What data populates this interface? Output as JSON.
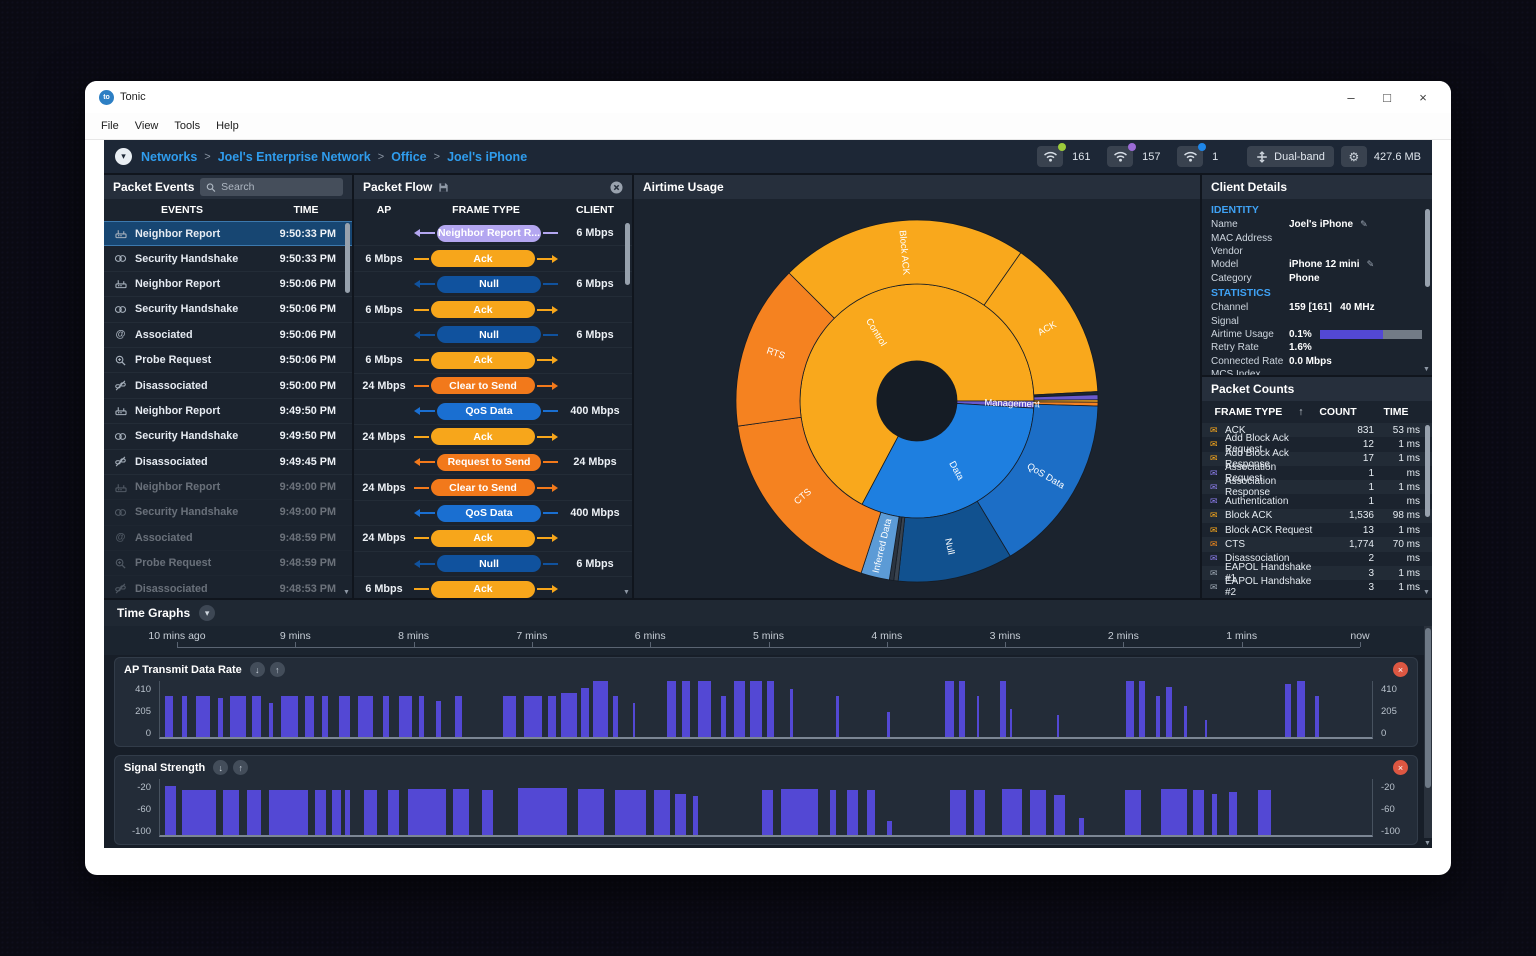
{
  "window": {
    "title": "Tonic",
    "logo_text": "to"
  },
  "icons": {
    "minimize": "–",
    "maximize": "□",
    "close": "×",
    "chevron_down": "▾",
    "arrow_down": "↓",
    "arrow_up": "↑",
    "sort_asc": "↑",
    "envelope": "✉",
    "gear": "⚙",
    "pencil": "✎",
    "scroll_down": "▼"
  },
  "menu": {
    "items": [
      "File",
      "View",
      "Tools",
      "Help"
    ]
  },
  "breadcrumb": {
    "separator": ">",
    "items": [
      "Networks",
      "Joel's Enterprise Network",
      "Office",
      "Joel's iPhone"
    ]
  },
  "statusbar": {
    "wifi": [
      {
        "count": "161",
        "dot": "#9ccb3b"
      },
      {
        "count": "157",
        "dot": "#9b6bd6"
      },
      {
        "count": "1",
        "dot": "#1e86e8"
      }
    ],
    "dual_band_label": "Dual-band",
    "data_size": "427.6 MB"
  },
  "theme": {
    "accent_purple": "#5348d4",
    "link_blue": "#2f9ced",
    "pills": {
      "mgmt": "#b3a6f0",
      "ack": "#f7a61b",
      "cts": "#f2791b",
      "qos": "#1a6fd1",
      "null": "#10529e"
    }
  },
  "packet_events": {
    "title": "Packet Events",
    "search_placeholder": "Search",
    "columns": [
      "EVENTS",
      "TIME"
    ],
    "rows": [
      {
        "icon": "neighbor-report",
        "event": "Neighbor Report",
        "time": "9:50:33 PM",
        "selected": true,
        "dim": false
      },
      {
        "icon": "security-handshake",
        "event": "Security Handshake",
        "time": "9:50:33 PM",
        "selected": false,
        "dim": false
      },
      {
        "icon": "neighbor-report",
        "event": "Neighbor Report",
        "time": "9:50:06 PM",
        "selected": false,
        "dim": false
      },
      {
        "icon": "security-handshake",
        "event": "Security Handshake",
        "time": "9:50:06 PM",
        "selected": false,
        "dim": false
      },
      {
        "icon": "associated",
        "event": "Associated",
        "time": "9:50:06 PM",
        "selected": false,
        "dim": false
      },
      {
        "icon": "probe-request",
        "event": "Probe Request",
        "time": "9:50:06 PM",
        "selected": false,
        "dim": false
      },
      {
        "icon": "disassociated",
        "event": "Disassociated",
        "time": "9:50:00 PM",
        "selected": false,
        "dim": false
      },
      {
        "icon": "neighbor-report",
        "event": "Neighbor Report",
        "time": "9:49:50 PM",
        "selected": false,
        "dim": false
      },
      {
        "icon": "security-handshake",
        "event": "Security Handshake",
        "time": "9:49:50 PM",
        "selected": false,
        "dim": false
      },
      {
        "icon": "disassociated",
        "event": "Disassociated",
        "time": "9:49:45 PM",
        "selected": false,
        "dim": false
      },
      {
        "icon": "neighbor-report",
        "event": "Neighbor Report",
        "time": "9:49:00 PM",
        "selected": false,
        "dim": true
      },
      {
        "icon": "security-handshake",
        "event": "Security Handshake",
        "time": "9:49:00 PM",
        "selected": false,
        "dim": true
      },
      {
        "icon": "associated",
        "event": "Associated",
        "time": "9:48:59 PM",
        "selected": false,
        "dim": true
      },
      {
        "icon": "probe-request",
        "event": "Probe Request",
        "time": "9:48:59 PM",
        "selected": false,
        "dim": true
      },
      {
        "icon": "disassociated",
        "event": "Disassociated",
        "time": "9:48:53 PM",
        "selected": false,
        "dim": true
      }
    ]
  },
  "packet_flow": {
    "title": "Packet Flow",
    "columns": [
      "AP",
      "FRAME TYPE",
      "CLIENT"
    ],
    "rows": [
      {
        "ap": "",
        "frame": "Neighbor Report R...",
        "client": "6 Mbps",
        "dir": "left",
        "kind": "mgmt"
      },
      {
        "ap": "6 Mbps",
        "frame": "Ack",
        "client": "",
        "dir": "right",
        "kind": "ack"
      },
      {
        "ap": "",
        "frame": "Null",
        "client": "6 Mbps",
        "dir": "left",
        "kind": "null"
      },
      {
        "ap": "6 Mbps",
        "frame": "Ack",
        "client": "",
        "dir": "right",
        "kind": "ack"
      },
      {
        "ap": "",
        "frame": "Null",
        "client": "6 Mbps",
        "dir": "left",
        "kind": "null"
      },
      {
        "ap": "6 Mbps",
        "frame": "Ack",
        "client": "",
        "dir": "right",
        "kind": "ack"
      },
      {
        "ap": "24 Mbps",
        "frame": "Clear to Send",
        "client": "",
        "dir": "right",
        "kind": "cts"
      },
      {
        "ap": "",
        "frame": "QoS Data",
        "client": "400 Mbps",
        "dir": "left",
        "kind": "qos"
      },
      {
        "ap": "24 Mbps",
        "frame": "Ack",
        "client": "",
        "dir": "right",
        "kind": "ack"
      },
      {
        "ap": "",
        "frame": "Request to Send",
        "client": "24 Mbps",
        "dir": "left",
        "kind": "cts"
      },
      {
        "ap": "24 Mbps",
        "frame": "Clear to Send",
        "client": "",
        "dir": "right",
        "kind": "cts"
      },
      {
        "ap": "",
        "frame": "QoS Data",
        "client": "400 Mbps",
        "dir": "left",
        "kind": "qos"
      },
      {
        "ap": "24 Mbps",
        "frame": "Ack",
        "client": "",
        "dir": "right",
        "kind": "ack"
      },
      {
        "ap": "",
        "frame": "Null",
        "client": "6 Mbps",
        "dir": "left",
        "kind": "null"
      },
      {
        "ap": "6 Mbps",
        "frame": "Ack",
        "client": "",
        "dir": "right",
        "kind": "ack"
      }
    ]
  },
  "airtime": {
    "title": "Airtime Usage"
  },
  "client_details": {
    "title": "Client Details",
    "identity_header": "IDENTITY",
    "statistics_header": "STATISTICS",
    "identity": [
      {
        "label": "Name",
        "value": "Joel's iPhone",
        "edit": true
      },
      {
        "label": "MAC Address",
        "value": ""
      },
      {
        "label": "Vendor",
        "value": ""
      },
      {
        "label": "Model",
        "value": "iPhone 12 mini",
        "edit": true
      },
      {
        "label": "Category",
        "value": "Phone"
      }
    ],
    "statistics": [
      {
        "label": "Channel",
        "value": "159 [161]   40 MHz"
      },
      {
        "label": "Signal",
        "value": ""
      },
      {
        "label": "Airtime Usage",
        "value": "0.1%",
        "bar": 0.62
      },
      {
        "label": "Retry Rate",
        "value": "1.6%"
      },
      {
        "label": "Connected Rate",
        "value": "0.0 Mbps"
      },
      {
        "label": "MCS Index",
        "value": ""
      }
    ]
  },
  "packet_counts": {
    "title": "Packet Counts",
    "columns": [
      "FRAME TYPE",
      "COUNT",
      "TIME"
    ],
    "rows": [
      {
        "frame": "ACK",
        "count": "831",
        "time": "53 ms",
        "color": "#f7a61b"
      },
      {
        "frame": "Add Block Ack Request",
        "count": "12",
        "time": "1 ms",
        "color": "#f7a61b"
      },
      {
        "frame": "Add Block Ack Response",
        "count": "17",
        "time": "1 ms",
        "color": "#f7a61b"
      },
      {
        "frame": "Association Request",
        "count": "1",
        "time": "ms",
        "color": "#8a7be8"
      },
      {
        "frame": "Association Response",
        "count": "1",
        "time": "1 ms",
        "color": "#8a7be8"
      },
      {
        "frame": "Authentication",
        "count": "1",
        "time": "ms",
        "color": "#8a7be8"
      },
      {
        "frame": "Block ACK",
        "count": "1,536",
        "time": "98 ms",
        "color": "#f7a61b"
      },
      {
        "frame": "Block ACK Request",
        "count": "13",
        "time": "1 ms",
        "color": "#f7a61b"
      },
      {
        "frame": "CTS",
        "count": "1,774",
        "time": "70 ms",
        "color": "#f2881b"
      },
      {
        "frame": "Disassociation",
        "count": "2",
        "time": "ms",
        "color": "#8a7be8"
      },
      {
        "frame": "EAPOL Handshake #1",
        "count": "3",
        "time": "1 ms",
        "color": "#9aa4b0"
      },
      {
        "frame": "EAPOL Handshake #2",
        "count": "3",
        "time": "1 ms",
        "color": "#9aa4b0"
      }
    ]
  },
  "time_graphs": {
    "title": "Time Graphs",
    "timeline": [
      "10 mins ago",
      "9 mins",
      "8 mins",
      "7 mins",
      "6 mins",
      "5 mins",
      "4 mins",
      "3 mins",
      "2 mins",
      "1 mins",
      "now"
    ]
  },
  "chart_data": [
    {
      "type": "sunburst",
      "title": "Airtime Usage",
      "rings": [
        "frame category",
        "frame type"
      ],
      "angle_convention": "degrees clockwise from 12 o'clock",
      "segments": [
        {
          "name": "Control",
          "ring": 0,
          "start": 208,
          "end": 450,
          "color": "#F9A81C"
        },
        {
          "name": "Management",
          "ring": 0,
          "start": 90,
          "end": 93.5,
          "color": "#6A5ACD",
          "label_r": 95
        },
        {
          "name": "Data",
          "ring": 0,
          "start": 93.5,
          "end": 208,
          "color": "#1E7FE0"
        },
        {
          "name": "Block ACK",
          "ring": 1,
          "start": 315,
          "end": 395,
          "color": "#F9A81C"
        },
        {
          "name": "ACK",
          "ring": 1,
          "start": 35,
          "end": 87,
          "color": "#F9A81C"
        },
        {
          "name": "",
          "ring": 1,
          "start": 87,
          "end": 88,
          "color": "#1b2531"
        },
        {
          "name": "",
          "ring": 1,
          "start": 88,
          "end": 89.6,
          "color": "#6A5ACD"
        },
        {
          "name": "",
          "ring": 1,
          "start": 89.6,
          "end": 90.4,
          "color": "#F9A81C"
        },
        {
          "name": "",
          "ring": 1,
          "start": 90.4,
          "end": 91.6,
          "color": "#F58220"
        },
        {
          "name": "QoS Data",
          "ring": 1,
          "start": 91.6,
          "end": 149,
          "color": "#1C6EC6"
        },
        {
          "name": "Null",
          "ring": 1,
          "start": 149,
          "end": 186,
          "color": "#11518F"
        },
        {
          "name": "",
          "ring": 1,
          "start": 186,
          "end": 187.4,
          "color": "#39434f"
        },
        {
          "name": "",
          "ring": 1,
          "start": 187.4,
          "end": 188.8,
          "color": "#2b3440"
        },
        {
          "name": "Inferred Data",
          "ring": 1,
          "start": 188.8,
          "end": 198,
          "color": "#5C9BD6"
        },
        {
          "name": "CTS",
          "ring": 1,
          "start": 198,
          "end": 262,
          "color": "#F58220"
        },
        {
          "name": "RTS",
          "ring": 1,
          "start": 262,
          "end": 315,
          "color": "#F58220"
        }
      ]
    },
    {
      "type": "bar",
      "title": "AP Transmit Data Rate",
      "ylim": [
        0,
        450
      ],
      "y_ticks": [
        "410",
        "205",
        "0"
      ],
      "x_range": [
        "10 mins ago",
        "now"
      ],
      "color": "#5348d4",
      "bars": [
        [
          0.004,
          0.007,
          0.73
        ],
        [
          0.018,
          0.004,
          0.73
        ],
        [
          0.03,
          0.011,
          0.73
        ],
        [
          0.048,
          0.004,
          0.7
        ],
        [
          0.058,
          0.013,
          0.73
        ],
        [
          0.076,
          0.007,
          0.73
        ],
        [
          0.09,
          0.003,
          0.6
        ],
        [
          0.1,
          0.014,
          0.73
        ],
        [
          0.12,
          0.007,
          0.73
        ],
        [
          0.134,
          0.005,
          0.73
        ],
        [
          0.148,
          0.009,
          0.73
        ],
        [
          0.163,
          0.013,
          0.73
        ],
        [
          0.184,
          0.005,
          0.73
        ],
        [
          0.197,
          0.011,
          0.73
        ],
        [
          0.214,
          0.004,
          0.73
        ],
        [
          0.228,
          0.004,
          0.65
        ],
        [
          0.243,
          0.006,
          0.73
        ],
        [
          0.283,
          0.011,
          0.73
        ],
        [
          0.3,
          0.015,
          0.73
        ],
        [
          0.32,
          0.007,
          0.73
        ],
        [
          0.331,
          0.013,
          0.78
        ],
        [
          0.347,
          0.007,
          0.88
        ],
        [
          0.357,
          0.013,
          1.0
        ],
        [
          0.374,
          0.004,
          0.73
        ],
        [
          0.39,
          0.002,
          0.6
        ],
        [
          0.418,
          0.008,
          1.0
        ],
        [
          0.431,
          0.006,
          1.0
        ],
        [
          0.444,
          0.011,
          1.0
        ],
        [
          0.463,
          0.004,
          0.73
        ],
        [
          0.474,
          0.009,
          1.0
        ],
        [
          0.487,
          0.01,
          1.0
        ],
        [
          0.501,
          0.006,
          1.0
        ],
        [
          0.52,
          0.002,
          0.85
        ],
        [
          0.558,
          0.002,
          0.73
        ],
        [
          0.6,
          0.002,
          0.45
        ],
        [
          0.648,
          0.007,
          1.0
        ],
        [
          0.659,
          0.005,
          1.0
        ],
        [
          0.674,
          0.002,
          0.73
        ],
        [
          0.693,
          0.005,
          1.0
        ],
        [
          0.701,
          0.002,
          0.5
        ],
        [
          0.74,
          0.002,
          0.4
        ],
        [
          0.797,
          0.007,
          1.0
        ],
        [
          0.808,
          0.005,
          1.0
        ],
        [
          0.822,
          0.003,
          0.73
        ],
        [
          0.83,
          0.005,
          0.9
        ],
        [
          0.845,
          0.002,
          0.55
        ],
        [
          0.862,
          0.002,
          0.3
        ],
        [
          0.928,
          0.005,
          0.95
        ],
        [
          0.938,
          0.007,
          1.0
        ],
        [
          0.953,
          0.003,
          0.73
        ]
      ]
    },
    {
      "type": "bar",
      "title": "Signal Strength",
      "ylim": [
        -100,
        -20
      ],
      "y_ticks": [
        "-20",
        "-60",
        "-100"
      ],
      "x_range": [
        "10 mins ago",
        "now"
      ],
      "color": "#5348d4",
      "bars": [
        [
          0.004,
          0.009,
          0.87
        ],
        [
          0.018,
          0.028,
          0.8
        ],
        [
          0.052,
          0.013,
          0.8
        ],
        [
          0.072,
          0.011,
          0.8
        ],
        [
          0.09,
          0.032,
          0.8
        ],
        [
          0.128,
          0.009,
          0.8
        ],
        [
          0.142,
          0.007,
          0.8
        ],
        [
          0.153,
          0.004,
          0.8
        ],
        [
          0.168,
          0.011,
          0.8
        ],
        [
          0.188,
          0.009,
          0.8
        ],
        [
          0.205,
          0.031,
          0.82
        ],
        [
          0.242,
          0.013,
          0.82
        ],
        [
          0.266,
          0.009,
          0.8
        ],
        [
          0.295,
          0.041,
          0.84
        ],
        [
          0.345,
          0.021,
          0.82
        ],
        [
          0.375,
          0.026,
          0.8
        ],
        [
          0.408,
          0.013,
          0.8
        ],
        [
          0.425,
          0.009,
          0.74
        ],
        [
          0.44,
          0.004,
          0.7
        ],
        [
          0.497,
          0.009,
          0.8
        ],
        [
          0.512,
          0.031,
          0.82
        ],
        [
          0.553,
          0.005,
          0.8
        ],
        [
          0.567,
          0.009,
          0.8
        ],
        [
          0.583,
          0.007,
          0.8
        ],
        [
          0.6,
          0.004,
          0.25
        ],
        [
          0.652,
          0.013,
          0.8
        ],
        [
          0.672,
          0.009,
          0.8
        ],
        [
          0.695,
          0.016,
          0.82
        ],
        [
          0.718,
          0.013,
          0.8
        ],
        [
          0.738,
          0.009,
          0.72
        ],
        [
          0.758,
          0.004,
          0.3
        ],
        [
          0.796,
          0.013,
          0.8
        ],
        [
          0.826,
          0.021,
          0.82
        ],
        [
          0.852,
          0.009,
          0.8
        ],
        [
          0.868,
          0.004,
          0.74
        ],
        [
          0.882,
          0.007,
          0.76
        ],
        [
          0.906,
          0.011,
          0.8
        ]
      ]
    }
  ]
}
